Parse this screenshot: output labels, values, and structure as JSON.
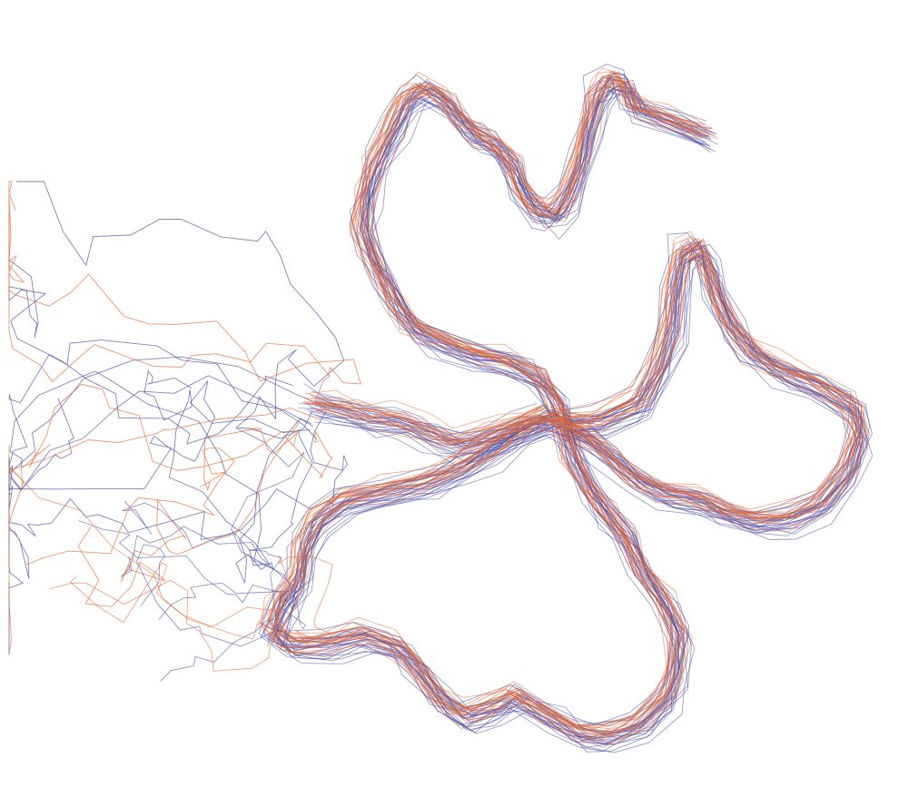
{
  "ensemble": {
    "strands": [
      {
        "color": "#4a4aa8"
      },
      {
        "color": "#e8682e"
      }
    ]
  }
}
